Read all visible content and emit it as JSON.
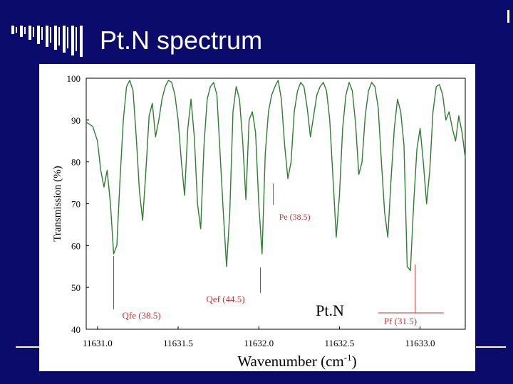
{
  "slide": {
    "title": "Pt.N spectrum"
  },
  "colors": {
    "background": "#0b0b6b",
    "spectrum": "#2e7d32",
    "annotation": "#d32f2f",
    "title": "#ffffff"
  },
  "chart_data": {
    "type": "line",
    "title": "",
    "xlabel": "Wavenumber (cm-1)",
    "ylabel": "Transmission (%)",
    "xlim": [
      11630.93,
      11633.28
    ],
    "ylim": [
      40,
      100
    ],
    "x_ticks": [
      11631.0,
      11631.5,
      11632.0,
      11632.5,
      11633.0
    ],
    "x_tick_labels": [
      "11631.0",
      "11631.5",
      "11632.0",
      "11632.5",
      "11633.0"
    ],
    "y_ticks": [
      40,
      50,
      60,
      70,
      80,
      90,
      100
    ],
    "y_tick_labels": [
      "40",
      "50",
      "60",
      "70",
      "80",
      "90",
      "100"
    ],
    "series": [
      {
        "name": "",
        "color": "#2e7d32",
        "x": [
          11630.93,
          11630.97,
          11631.0,
          11631.02,
          11631.04,
          11631.06,
          11631.08,
          11631.1,
          11631.12,
          11631.14,
          11631.16,
          11631.18,
          11631.2,
          11631.22,
          11631.24,
          11631.26,
          11631.28,
          11631.3,
          11631.32,
          11631.34,
          11631.36,
          11631.38,
          11631.4,
          11631.42,
          11631.44,
          11631.46,
          11631.48,
          11631.5,
          11631.52,
          11631.54,
          11631.56,
          11631.58,
          11631.6,
          11631.62,
          11631.64,
          11631.66,
          11631.68,
          11631.7,
          11631.72,
          11631.74,
          11631.76,
          11631.78,
          11631.8,
          11631.82,
          11631.84,
          11631.86,
          11631.88,
          11631.9,
          11631.92,
          11631.94,
          11631.96,
          11631.98,
          11632.0,
          11632.02,
          11632.04,
          11632.06,
          11632.08,
          11632.1,
          11632.12,
          11632.14,
          11632.16,
          11632.18,
          11632.2,
          11632.22,
          11632.24,
          11632.26,
          11632.28,
          11632.3,
          11632.32,
          11632.34,
          11632.36,
          11632.38,
          11632.4,
          11632.42,
          11632.44,
          11632.46,
          11632.48,
          11632.5,
          11632.52,
          11632.54,
          11632.56,
          11632.58,
          11632.6,
          11632.62,
          11632.64,
          11632.66,
          11632.68,
          11632.7,
          11632.72,
          11632.74,
          11632.76,
          11632.78,
          11632.8,
          11632.82,
          11632.84,
          11632.86,
          11632.88,
          11632.9,
          11632.92,
          11632.94,
          11632.96,
          11632.98,
          11633.0,
          11633.02,
          11633.04,
          11633.06,
          11633.08,
          11633.1,
          11633.12,
          11633.14,
          11633.16,
          11633.18,
          11633.2,
          11633.22,
          11633.24,
          11633.26,
          11633.28
        ],
        "y": [
          89.5,
          88.5,
          85,
          78,
          74,
          78,
          70,
          58,
          60,
          76,
          90,
          98,
          99.5,
          97,
          86,
          73,
          66,
          78,
          91,
          94,
          86,
          90,
          95,
          98,
          99.5,
          99,
          96,
          90,
          80,
          72,
          88,
          95,
          86,
          70,
          64,
          84,
          95,
          98,
          99,
          96,
          82,
          68,
          55,
          68,
          92,
          98,
          95,
          85,
          71,
          90,
          92,
          87,
          70,
          58,
          82,
          92,
          96,
          98,
          99.5,
          95,
          84,
          76,
          80,
          92,
          97,
          99,
          98,
          93,
          86,
          91,
          96,
          98,
          99,
          97,
          90,
          76,
          62,
          72,
          88,
          96,
          99,
          97,
          89,
          77,
          80,
          91,
          97,
          99,
          98,
          93,
          80,
          68,
          62,
          76,
          88,
          95,
          92,
          84,
          55,
          54,
          70,
          83,
          88,
          80,
          70,
          78,
          92,
          98,
          98.5,
          96,
          90,
          92,
          88,
          85,
          91,
          87,
          81
        ]
      }
    ],
    "annotations": [
      {
        "label": "Pe (38.5)",
        "x": 11632.09
      },
      {
        "label": "Qfe (38.5)",
        "x": 11631.1
      },
      {
        "label": "Qef (44.5)",
        "x": 11632.01
      },
      {
        "label": "Pf (31.5)",
        "x": 11632.97
      },
      {
        "label": "Pt.N",
        "x": 11632.3
      }
    ]
  }
}
